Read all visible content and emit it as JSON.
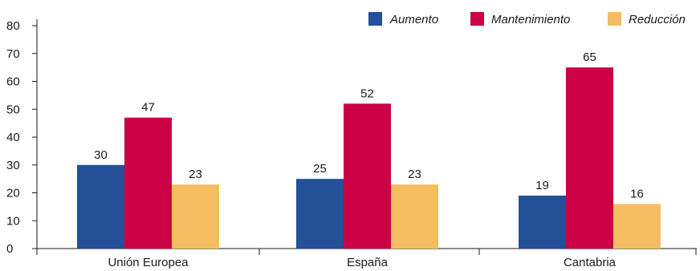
{
  "chart_data": {
    "type": "bar",
    "categories": [
      "Unión Europea",
      "España",
      "Cantabria"
    ],
    "series": [
      {
        "name": "Aumento",
        "values": [
          30,
          25,
          19
        ],
        "color": "#235097"
      },
      {
        "name": "Mantenimiento",
        "values": [
          47,
          52,
          65
        ],
        "color": "#cc0044"
      },
      {
        "name": "Reducción",
        "values": [
          23,
          23,
          16
        ],
        "color": "#f4bd62"
      }
    ],
    "data_labels": [
      [
        "30",
        "25",
        "19"
      ],
      [
        "47",
        "52",
        "65"
      ],
      [
        "23",
        "23",
        "16"
      ]
    ],
    "ylim": [
      0,
      80
    ],
    "yticks": [
      "0",
      "10",
      "20",
      "30",
      "40",
      "50",
      "60",
      "70",
      "80"
    ],
    "grid": false,
    "legend_position": "top-right",
    "title": "",
    "xlabel": "",
    "ylabel": ""
  }
}
